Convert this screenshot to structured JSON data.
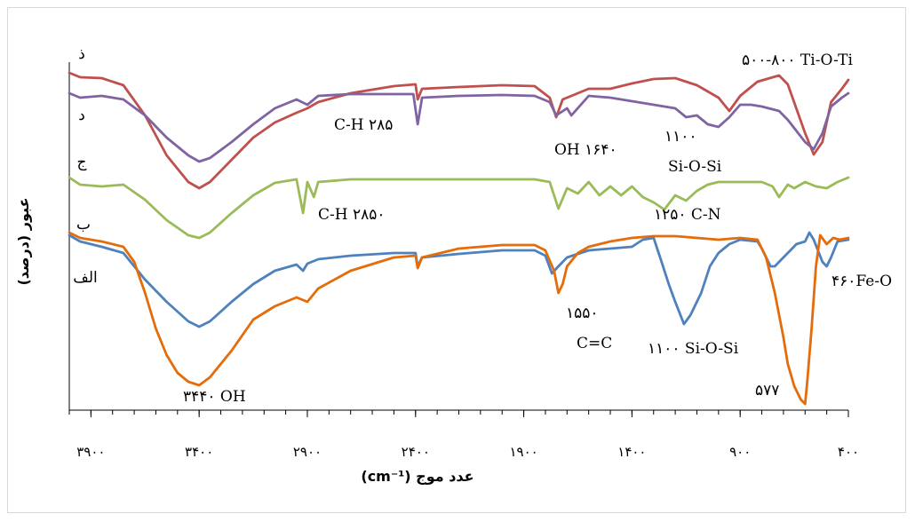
{
  "chart_data": {
    "type": "line",
    "xlabel": "عدد موج (cm⁻¹)",
    "ylabel": "عبور (درصد)",
    "x_reversed": true,
    "xlim": [
      4000,
      400
    ],
    "xticks": [
      {
        "value": 3900,
        "label": "۳۹۰۰"
      },
      {
        "value": 3400,
        "label": "۳۴۰۰"
      },
      {
        "value": 2900,
        "label": "۲۹۰۰"
      },
      {
        "value": 2400,
        "label": "۲۴۰۰"
      },
      {
        "value": 1900,
        "label": "۱۹۰۰"
      },
      {
        "value": 1400,
        "label": "۱۴۰۰"
      },
      {
        "value": 900,
        "label": "۹۰۰"
      },
      {
        "value": 400,
        "label": "۴۰۰"
      }
    ],
    "series": [
      {
        "name": "ذ",
        "color": "#c0504d",
        "points": [
          [
            4000,
            82
          ],
          [
            3950,
            87
          ],
          [
            3850,
            88
          ],
          [
            3750,
            96
          ],
          [
            3650,
            130
          ],
          [
            3550,
            175
          ],
          [
            3450,
            205
          ],
          [
            3400,
            212
          ],
          [
            3350,
            205
          ],
          [
            3250,
            180
          ],
          [
            3150,
            155
          ],
          [
            3050,
            138
          ],
          [
            2950,
            127
          ],
          [
            2900,
            122
          ],
          [
            2850,
            115
          ],
          [
            2700,
            105
          ],
          [
            2500,
            97
          ],
          [
            2400,
            95
          ],
          [
            2390,
            112
          ],
          [
            2370,
            100
          ],
          [
            2200,
            98
          ],
          [
            2000,
            96
          ],
          [
            1850,
            97
          ],
          [
            1780,
            110
          ],
          [
            1750,
            132
          ],
          [
            1720,
            112
          ],
          [
            1600,
            100
          ],
          [
            1500,
            100
          ],
          [
            1400,
            94
          ],
          [
            1300,
            89
          ],
          [
            1200,
            88
          ],
          [
            1100,
            96
          ],
          [
            1000,
            110
          ],
          [
            950,
            125
          ],
          [
            900,
            108
          ],
          [
            820,
            92
          ],
          [
            720,
            85
          ],
          [
            680,
            95
          ],
          [
            600,
            150
          ],
          [
            560,
            174
          ],
          [
            520,
            160
          ],
          [
            480,
            115
          ],
          [
            430,
            100
          ],
          [
            400,
            90
          ]
        ]
      },
      {
        "name": "د",
        "color": "#8064a2",
        "points": [
          [
            4000,
            105
          ],
          [
            3950,
            110
          ],
          [
            3850,
            108
          ],
          [
            3750,
            112
          ],
          [
            3650,
            130
          ],
          [
            3550,
            155
          ],
          [
            3450,
            175
          ],
          [
            3400,
            182
          ],
          [
            3350,
            178
          ],
          [
            3250,
            160
          ],
          [
            3150,
            140
          ],
          [
            3050,
            122
          ],
          [
            2950,
            112
          ],
          [
            2900,
            118
          ],
          [
            2850,
            108
          ],
          [
            2700,
            106
          ],
          [
            2500,
            106
          ],
          [
            2410,
            106
          ],
          [
            2390,
            140
          ],
          [
            2370,
            110
          ],
          [
            2200,
            108
          ],
          [
            2000,
            107
          ],
          [
            1850,
            108
          ],
          [
            1780,
            115
          ],
          [
            1750,
            130
          ],
          [
            1700,
            122
          ],
          [
            1680,
            130
          ],
          [
            1600,
            108
          ],
          [
            1500,
            110
          ],
          [
            1400,
            114
          ],
          [
            1300,
            118
          ],
          [
            1200,
            122
          ],
          [
            1150,
            132
          ],
          [
            1100,
            130
          ],
          [
            1050,
            140
          ],
          [
            1000,
            143
          ],
          [
            950,
            132
          ],
          [
            900,
            118
          ],
          [
            850,
            118
          ],
          [
            800,
            120
          ],
          [
            720,
            125
          ],
          [
            680,
            135
          ],
          [
            600,
            160
          ],
          [
            560,
            168
          ],
          [
            520,
            150
          ],
          [
            480,
            120
          ],
          [
            430,
            110
          ],
          [
            400,
            105
          ]
        ]
      },
      {
        "name": "ج",
        "color": "#9bbb59",
        "points": [
          [
            4000,
            200
          ],
          [
            3950,
            208
          ],
          [
            3850,
            210
          ],
          [
            3750,
            208
          ],
          [
            3650,
            225
          ],
          [
            3550,
            248
          ],
          [
            3450,
            265
          ],
          [
            3400,
            268
          ],
          [
            3350,
            262
          ],
          [
            3250,
            240
          ],
          [
            3150,
            220
          ],
          [
            3050,
            206
          ],
          [
            2950,
            202
          ],
          [
            2920,
            240
          ],
          [
            2900,
            205
          ],
          [
            2870,
            222
          ],
          [
            2850,
            205
          ],
          [
            2700,
            202
          ],
          [
            2500,
            202
          ],
          [
            2400,
            202
          ],
          [
            2200,
            202
          ],
          [
            2000,
            202
          ],
          [
            1850,
            202
          ],
          [
            1780,
            205
          ],
          [
            1740,
            235
          ],
          [
            1700,
            212
          ],
          [
            1650,
            218
          ],
          [
            1600,
            205
          ],
          [
            1550,
            220
          ],
          [
            1500,
            210
          ],
          [
            1450,
            220
          ],
          [
            1400,
            210
          ],
          [
            1350,
            222
          ],
          [
            1300,
            228
          ],
          [
            1250,
            236
          ],
          [
            1200,
            220
          ],
          [
            1150,
            226
          ],
          [
            1100,
            215
          ],
          [
            1050,
            208
          ],
          [
            1000,
            205
          ],
          [
            950,
            205
          ],
          [
            900,
            205
          ],
          [
            850,
            205
          ],
          [
            800,
            205
          ],
          [
            750,
            210
          ],
          [
            720,
            222
          ],
          [
            680,
            208
          ],
          [
            650,
            212
          ],
          [
            600,
            205
          ],
          [
            550,
            210
          ],
          [
            500,
            212
          ],
          [
            450,
            205
          ],
          [
            400,
            200
          ]
        ]
      },
      {
        "name": "ب",
        "color": "#4f81bd",
        "points": [
          [
            4000,
            265
          ],
          [
            3950,
            272
          ],
          [
            3850,
            278
          ],
          [
            3750,
            285
          ],
          [
            3700,
            300
          ],
          [
            3650,
            315
          ],
          [
            3550,
            340
          ],
          [
            3450,
            362
          ],
          [
            3400,
            368
          ],
          [
            3350,
            362
          ],
          [
            3250,
            340
          ],
          [
            3150,
            320
          ],
          [
            3050,
            305
          ],
          [
            2950,
            298
          ],
          [
            2920,
            305
          ],
          [
            2900,
            297
          ],
          [
            2850,
            292
          ],
          [
            2700,
            288
          ],
          [
            2500,
            285
          ],
          [
            2400,
            285
          ],
          [
            2390,
            300
          ],
          [
            2370,
            290
          ],
          [
            2200,
            286
          ],
          [
            2000,
            282
          ],
          [
            1850,
            282
          ],
          [
            1800,
            288
          ],
          [
            1770,
            308
          ],
          [
            1740,
            300
          ],
          [
            1700,
            290
          ],
          [
            1600,
            282
          ],
          [
            1500,
            280
          ],
          [
            1400,
            278
          ],
          [
            1350,
            270
          ],
          [
            1300,
            268
          ],
          [
            1270,
            290
          ],
          [
            1230,
            320
          ],
          [
            1200,
            340
          ],
          [
            1160,
            365
          ],
          [
            1130,
            355
          ],
          [
            1080,
            330
          ],
          [
            1040,
            300
          ],
          [
            1000,
            285
          ],
          [
            950,
            275
          ],
          [
            900,
            270
          ],
          [
            820,
            272
          ],
          [
            800,
            280
          ],
          [
            760,
            300
          ],
          [
            740,
            300
          ],
          [
            720,
            295
          ],
          [
            680,
            285
          ],
          [
            640,
            275
          ],
          [
            600,
            272
          ],
          [
            580,
            262
          ],
          [
            560,
            270
          ],
          [
            520,
            295
          ],
          [
            500,
            300
          ],
          [
            480,
            290
          ],
          [
            450,
            272
          ],
          [
            400,
            270
          ]
        ]
      },
      {
        "name": "الف",
        "color": "#e46c0a",
        "points": [
          [
            4000,
            262
          ],
          [
            3950,
            268
          ],
          [
            3850,
            272
          ],
          [
            3750,
            278
          ],
          [
            3700,
            295
          ],
          [
            3650,
            330
          ],
          [
            3600,
            370
          ],
          [
            3550,
            400
          ],
          [
            3500,
            420
          ],
          [
            3450,
            430
          ],
          [
            3400,
            434
          ],
          [
            3350,
            425
          ],
          [
            3250,
            395
          ],
          [
            3150,
            360
          ],
          [
            3050,
            345
          ],
          [
            2950,
            335
          ],
          [
            2900,
            340
          ],
          [
            2850,
            325
          ],
          [
            2700,
            305
          ],
          [
            2500,
            290
          ],
          [
            2400,
            288
          ],
          [
            2390,
            302
          ],
          [
            2370,
            290
          ],
          [
            2200,
            280
          ],
          [
            2000,
            276
          ],
          [
            1850,
            276
          ],
          [
            1800,
            282
          ],
          [
            1760,
            305
          ],
          [
            1740,
            330
          ],
          [
            1720,
            320
          ],
          [
            1700,
            300
          ],
          [
            1650,
            285
          ],
          [
            1600,
            278
          ],
          [
            1500,
            272
          ],
          [
            1400,
            268
          ],
          [
            1300,
            266
          ],
          [
            1200,
            266
          ],
          [
            1100,
            268
          ],
          [
            1000,
            270
          ],
          [
            900,
            268
          ],
          [
            820,
            270
          ],
          [
            780,
            290
          ],
          [
            740,
            330
          ],
          [
            700,
            380
          ],
          [
            680,
            410
          ],
          [
            650,
            435
          ],
          [
            620,
            450
          ],
          [
            600,
            455
          ],
          [
            590,
            430
          ],
          [
            570,
            370
          ],
          [
            550,
            300
          ],
          [
            530,
            265
          ],
          [
            500,
            275
          ],
          [
            470,
            268
          ],
          [
            440,
            270
          ],
          [
            400,
            268
          ]
        ]
      }
    ],
    "series_labels": [
      {
        "series": "ذ",
        "text": "ذ"
      },
      {
        "series": "د",
        "text": "د"
      },
      {
        "series": "ج",
        "text": "ج"
      },
      {
        "series": "ب",
        "text": "ب"
      },
      {
        "series": "الف",
        "text": "الف"
      }
    ],
    "annotations": [
      "۵۰۰-۸۰۰  Ti-O-Ti",
      "C-H  ۲۸۵",
      "OH ۱۶۴۰",
      "۱۱۰۰",
      "Si-O-Si",
      "C-H   ۲۸۵۰",
      "۱۲۵۰ C-N",
      "۱۵۵۰",
      "C=C",
      "۱۱۰۰ Si-O-Si",
      "۳۴۴۰ OH",
      "۵۷۷",
      "۴۶۰Fe-O"
    ]
  }
}
